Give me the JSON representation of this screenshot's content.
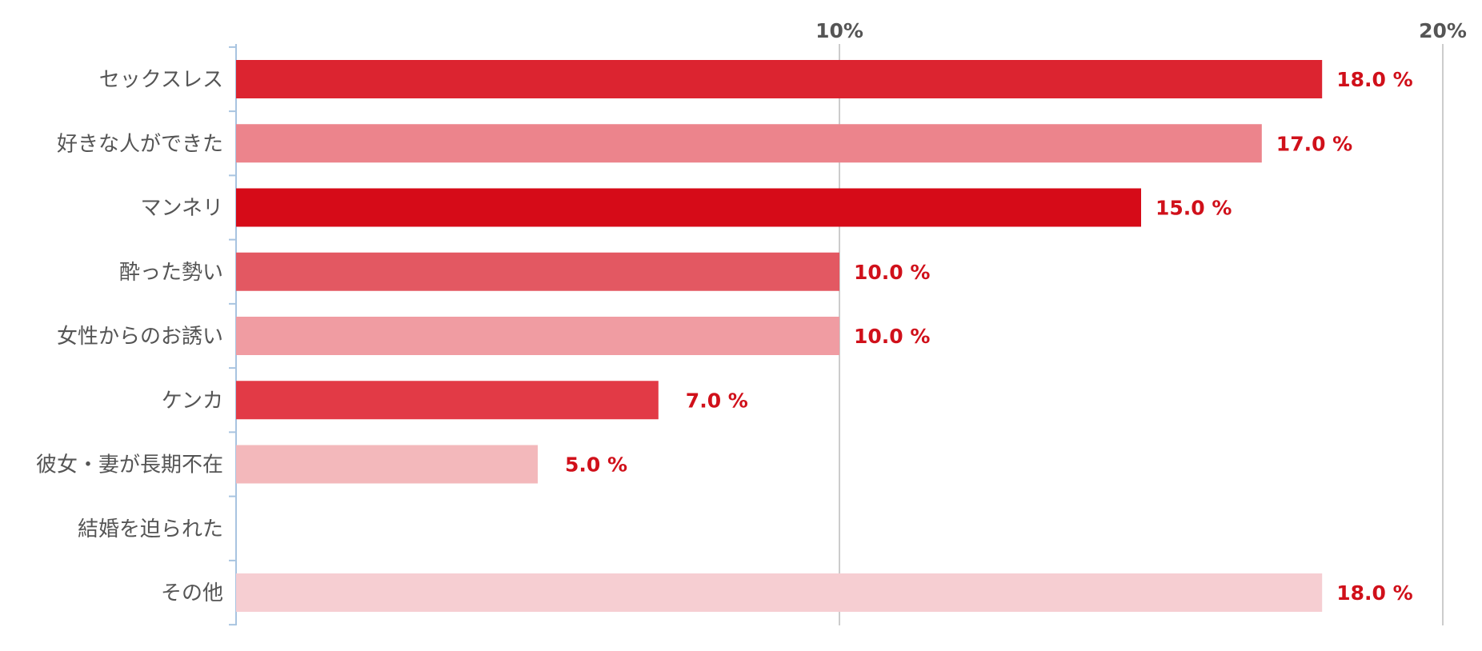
{
  "chart_data": {
    "type": "bar",
    "orientation": "horizontal",
    "categories": [
      "セックスレス",
      "好きな人ができた",
      "マンネリ",
      "酔った勢い",
      "女性からのお誘い",
      "ケンカ",
      "彼女・妻が長期不在",
      "結婚を迫られた",
      "その他"
    ],
    "values": [
      18.0,
      17.0,
      15.0,
      10.0,
      10.0,
      7.0,
      5.0,
      0,
      18.0
    ],
    "value_labels": [
      "18.0 %",
      "17.0 %",
      "15.0 %",
      "10.0 %",
      "10.0 %",
      "7.0 %",
      "5.0 %",
      "",
      "18.0 %"
    ],
    "bar_colors": [
      "#dc2430",
      "#ec848c",
      "#d60b18",
      "#e35862",
      "#f09ca2",
      "#e23a46",
      "#f3b8bb",
      "#f6cdd1",
      "#f6ced2"
    ],
    "xlim": [
      0,
      20
    ],
    "xticks": [
      10,
      20
    ],
    "xtick_labels": [
      "10%",
      "20%"
    ],
    "grid": true,
    "title": "",
    "xlabel": "",
    "ylabel": "",
    "label_color": "#d0101a",
    "category_text_color": "#555555",
    "tick_text_color": "#555555",
    "axis_color": "#a8c4e0",
    "grid_color": "#bbbbbb"
  }
}
